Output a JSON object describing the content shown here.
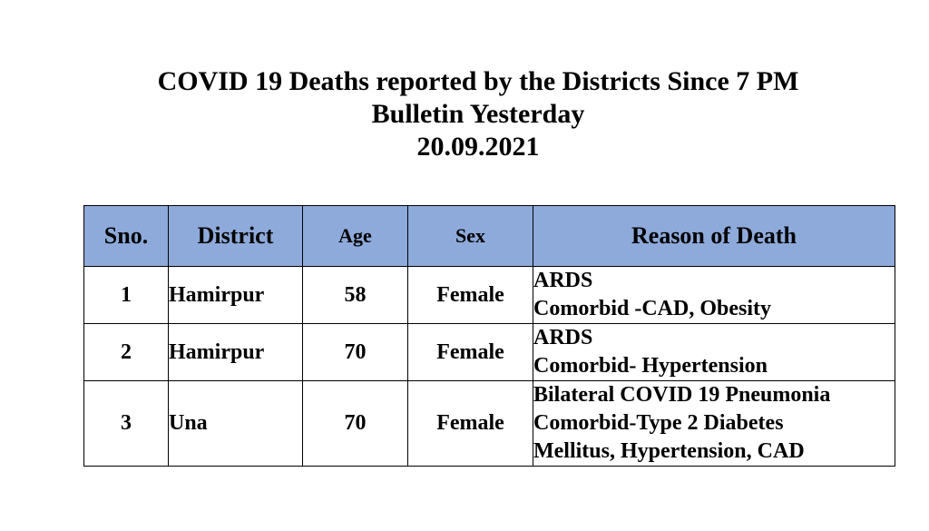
{
  "title": {
    "line1": "COVID 19 Deaths reported by the Districts Since 7 PM",
    "line2": "Bulletin Yesterday",
    "line3": "20.09.2021"
  },
  "table": {
    "headers": {
      "sno": "Sno.",
      "district": "District",
      "age": "Age",
      "sex": "Sex",
      "reason": "Reason of Death"
    },
    "header_color": "#8eaadb",
    "rows": [
      {
        "sno": "1",
        "district": "Hamirpur",
        "age": "58",
        "sex": "Female",
        "reason": [
          "ARDS",
          "Comorbid -CAD, Obesity"
        ]
      },
      {
        "sno": "2",
        "district": "Hamirpur",
        "age": "70",
        "sex": "Female",
        "reason": [
          "ARDS",
          "Comorbid- Hypertension"
        ]
      },
      {
        "sno": "3",
        "district": "Una",
        "age": "70",
        "sex": "Female",
        "reason": [
          "Bilateral COVID 19 Pneumonia",
          "Comorbid-Type 2 Diabetes",
          "Mellitus, Hypertension, CAD"
        ]
      }
    ]
  }
}
